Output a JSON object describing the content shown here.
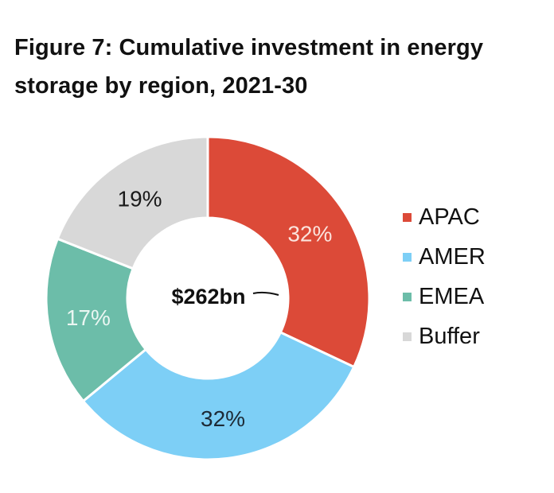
{
  "chart_data": {
    "type": "pie",
    "variant": "donut",
    "title": "Figure 7: Cumulative investment in energy storage by region, 2021-30",
    "center_label": "$262bn",
    "categories": [
      "APAC",
      "AMER",
      "EMEA",
      "Buffer"
    ],
    "values": [
      32,
      32,
      17,
      19
    ],
    "value_labels": [
      "32%",
      "32%",
      "17%",
      "19%"
    ],
    "colors": [
      "#dc4a38",
      "#7dcff6",
      "#6cbda9",
      "#d8d8d8"
    ],
    "label_colors": [
      "#fbe3dd",
      "#1d2a36",
      "#eaf6f2",
      "#1a1a1a"
    ],
    "start_angle": "12 o'clock",
    "direction": "clockwise",
    "legend_position": "right"
  }
}
